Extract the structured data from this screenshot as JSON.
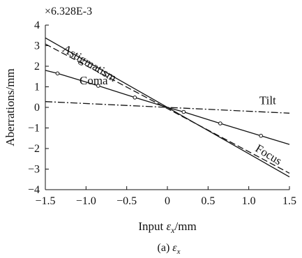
{
  "chart_data": {
    "type": "line",
    "scale_label": "×6.328E-3",
    "xlabel_parts": {
      "prefix": "Input ",
      "var": "ε",
      "sub": "x",
      "suffix": "/mm"
    },
    "ylabel": "Aberrations/mm",
    "caption_parts": {
      "prefix": "(a) ",
      "var": "ε",
      "sub": "x"
    },
    "xlim": [
      -1.5,
      1.5
    ],
    "ylim": [
      -4,
      4
    ],
    "xticks": [
      -1.5,
      -1.0,
      -0.5,
      0,
      0.5,
      1.0,
      1.5
    ],
    "xtick_labels": [
      "−1.5",
      "−1.0",
      "−0.5",
      "0",
      "0.5",
      "1.0",
      "1.5"
    ],
    "yticks": [
      -4,
      -3,
      -2,
      -1,
      0,
      1,
      2,
      3,
      4
    ],
    "ytick_labels": [
      "−4",
      "−3",
      "−2",
      "−1",
      "0",
      "1",
      "2",
      "3",
      "4"
    ],
    "grid": false,
    "series": [
      {
        "name": "Astigmatism",
        "x": [
          -1.5,
          1.5
        ],
        "y": [
          3.38,
          -3.38
        ],
        "style": "solid",
        "markers": false
      },
      {
        "name": "Focus",
        "x": [
          -1.5,
          1.5
        ],
        "y": [
          3.08,
          -3.2
        ],
        "style": "dashed",
        "markers": false
      },
      {
        "name": "Coma",
        "x": [
          -1.5,
          -1.35,
          -0.85,
          -0.4,
          0,
          0.2,
          0.65,
          1.15,
          1.5
        ],
        "y": [
          1.8,
          1.65,
          1.05,
          0.48,
          0,
          -0.22,
          -0.78,
          -1.38,
          -1.8
        ],
        "style": "solid",
        "markers": true,
        "marker_x": [
          -1.35,
          -0.85,
          -0.4,
          0.2,
          0.65,
          1.15
        ]
      },
      {
        "name": "Tilt",
        "x": [
          -1.5,
          1.5
        ],
        "y": [
          0.28,
          -0.28
        ],
        "style": "dashdot",
        "markers": false
      }
    ],
    "annotations": [
      {
        "text": "Astigmatism",
        "x": -1.3,
        "y": 2.75
      },
      {
        "text": "Coma",
        "x": -1.08,
        "y": 1.12
      },
      {
        "text": "Tilt",
        "x": 1.13,
        "y": 0.15
      },
      {
        "text": "Focus",
        "x": 1.07,
        "y": -2.1
      }
    ]
  }
}
